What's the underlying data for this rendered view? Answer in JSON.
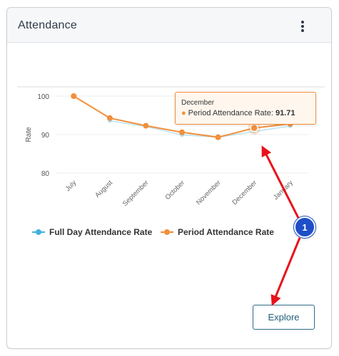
{
  "card": {
    "title": "Attendance"
  },
  "explore_label": "Explore",
  "tooltip": {
    "header": "December",
    "series": "Period Attendance Rate:",
    "value": "91.71"
  },
  "annotation": {
    "step": "1"
  },
  "colors": {
    "full_day": "#43b1dd",
    "period": "#f28f3b",
    "annotation_arrow": "#e8121b",
    "annotation_badge": "#1e4fc9"
  },
  "chart_data": {
    "type": "line",
    "categories": [
      "July",
      "August",
      "September",
      "October",
      "November",
      "December",
      "January"
    ],
    "ylabel": "Rate",
    "y_ticks": [
      "80",
      "90",
      "100"
    ],
    "ylim": [
      80,
      100
    ],
    "grid": true,
    "legend_position": "bottom-left",
    "series": [
      {
        "name": "Full Day Attendance Rate",
        "values": [
          null,
          93.6,
          92.1,
          89.9,
          89.3,
          90.8,
          92.2
        ]
      },
      {
        "name": "Period Attendance Rate",
        "values": [
          100,
          94.3,
          92.3,
          90.6,
          89.3,
          91.71,
          92.8
        ]
      }
    ],
    "highlighted": {
      "series": 1,
      "index": 5
    }
  }
}
